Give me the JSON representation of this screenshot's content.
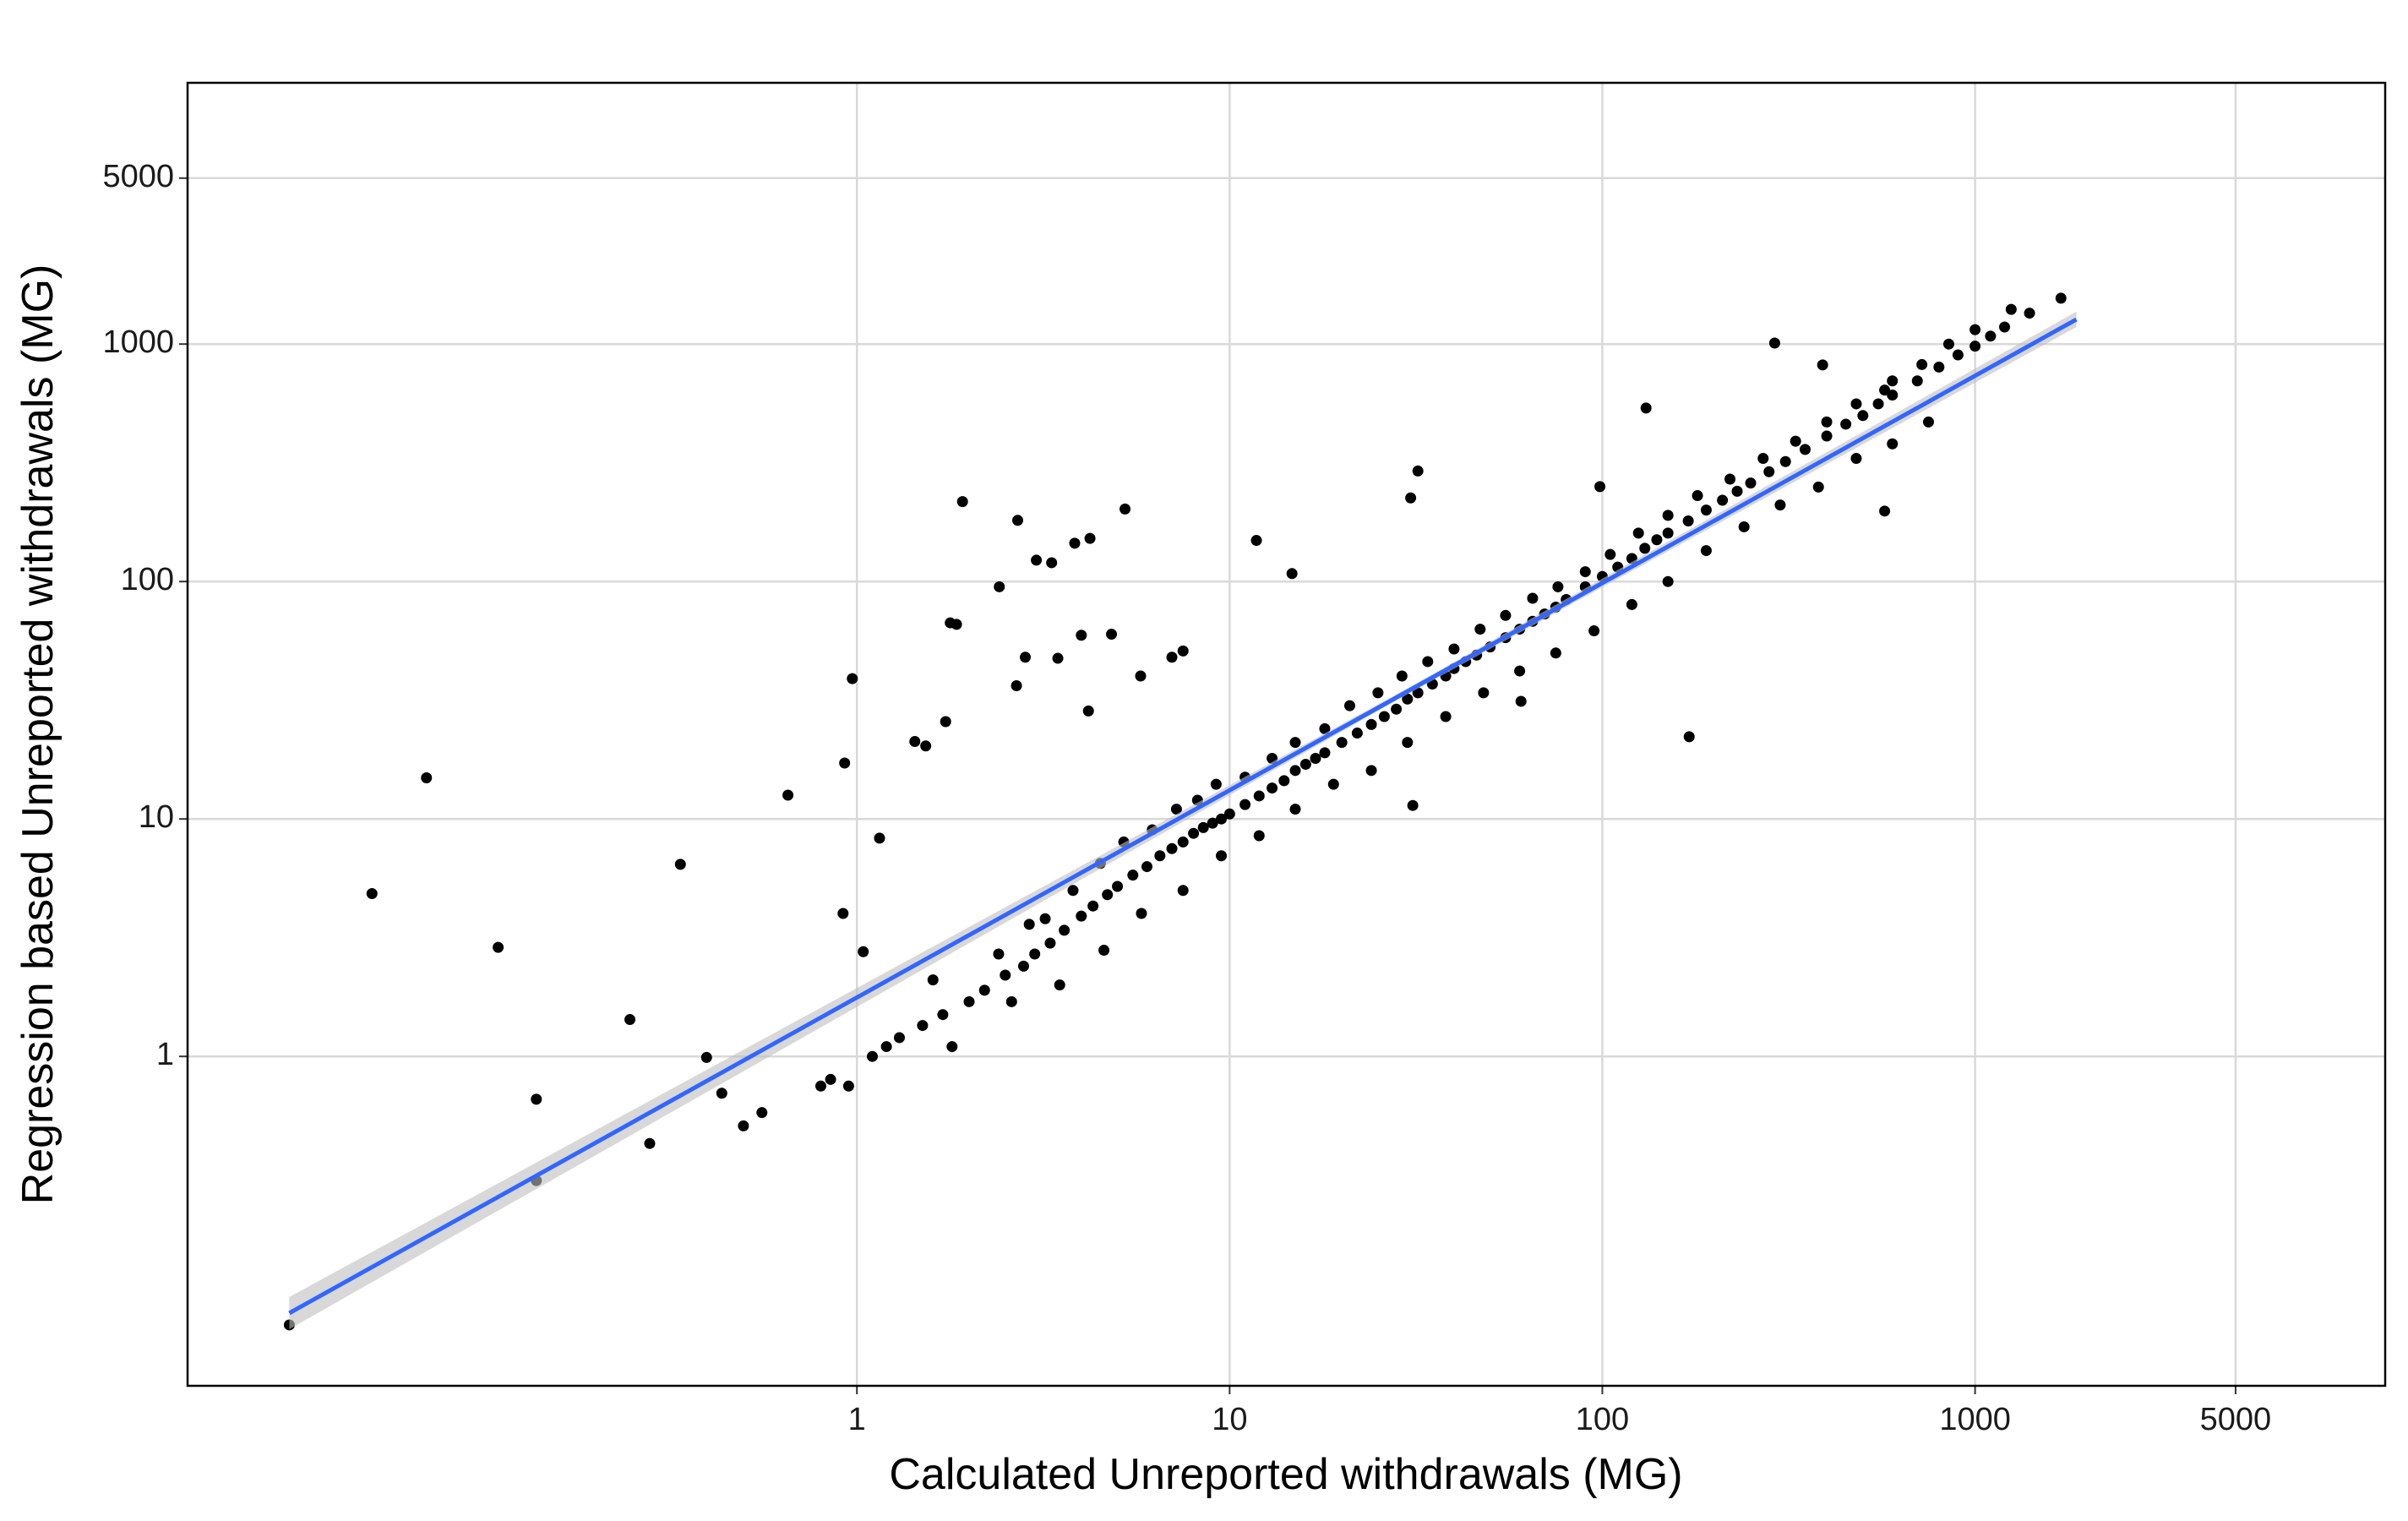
{
  "chart_data": {
    "type": "scatter",
    "x_label": "Calculated Unreported withdrawals (MG)",
    "y_label": "Regression based Unreported withdrawals (MG)",
    "x_log": true,
    "y_log": true,
    "grid": true,
    "xlim": [
      0.016,
      12600
    ],
    "ylim": [
      0.041,
      12600
    ],
    "xticks": [
      1,
      10,
      100,
      1000,
      5000
    ],
    "yticks": [
      1,
      10,
      100,
      1000,
      5000
    ],
    "color": "#000000",
    "x": [
      0.03,
      0.05,
      0.07,
      0.109,
      0.138,
      0.138,
      0.246,
      0.278,
      0.336,
      0.395,
      0.434,
      0.496,
      0.556,
      0.653,
      0.918,
      0.927,
      0.972,
      1.04,
      1.15,
      1.43,
      1.53,
      1.73,
      1.78,
      1.85,
      1.92,
      2.41,
      2.7,
      2.83,
      2.68,
      3.03,
      3.33,
      3.46,
      3.84,
      4.22,
      4.0,
      4.18,
      4.82,
      5.24,
      5.77,
      7.0,
      7.5,
      11.8,
      14.7,
      30.6,
      32,
      98.5,
      131,
      171,
      290,
      390,
      572,
      572,
      0.8,
      0.85,
      0.95,
      1.1,
      1.2,
      1.3,
      1.5,
      1.7,
      2.0,
      2.2,
      2.5,
      2.8,
      3.0,
      3.3,
      3.6,
      4.0,
      4.3,
      4.7,
      5.0,
      5.5,
      6,
      6.5,
      7,
      7.5,
      8,
      8.5,
      9,
      9.5,
      10,
      11,
      12,
      13,
      14,
      15,
      16,
      17,
      18,
      20,
      22,
      24,
      26,
      28,
      30,
      32,
      35,
      38,
      40,
      43,
      46,
      50,
      55,
      60,
      65,
      70,
      75,
      80,
      90,
      100,
      110,
      120,
      130,
      140,
      150,
      170,
      190,
      210,
      230,
      250,
      280,
      310,
      350,
      400,
      450,
      500,
      550,
      600,
      700,
      800,
      900,
      1000,
      1100,
      1200,
      1400,
      1700,
      1.6,
      2.4,
      2.9,
      3.2,
      3.8,
      4.5,
      5.2,
      6.2,
      7.2,
      8.2,
      9.2,
      11,
      13,
      15,
      18,
      21,
      25,
      29,
      34,
      40,
      47,
      55,
      65,
      76,
      90,
      105,
      125,
      150,
      180,
      220,
      270,
      330,
      400,
      480,
      600,
      720,
      850,
      1000,
      1250,
      1.8,
      2.6,
      3.5,
      4.6,
      5.8,
      7.5,
      9.5,
      12,
      15,
      19,
      24,
      30,
      38,
      48,
      60,
      75,
      95,
      120,
      150,
      190,
      240,
      300,
      380,
      480,
      600,
      750,
      31,
      60.5
    ],
    "values": [
      0.074,
      4.85,
      14.9,
      2.88,
      0.66,
      0.3,
      1.43,
      0.43,
      6.44,
      0.99,
      0.7,
      0.51,
      0.58,
      12.6,
      4.0,
      17.2,
      39,
      2.76,
      8.3,
      21.2,
      20.3,
      25.7,
      67,
      66,
      217,
      95,
      181,
      48,
      36.4,
      123,
      120,
      47.5,
      145,
      152,
      59.4,
      28.5,
      60,
      202,
      40,
      48,
      51,
      149,
      108,
      225,
      292,
      251,
      538,
      22.2,
      1010,
      817,
      198,
      640,
      0.75,
      0.8,
      0.75,
      1.0,
      1.1,
      1.2,
      1.35,
      1.5,
      1.7,
      1.9,
      2.2,
      2.4,
      2.7,
      3.0,
      3.4,
      3.9,
      4.3,
      4.8,
      5.2,
      5.8,
      6.3,
      7,
      7.5,
      8,
      8.7,
      9.2,
      9.6,
      10,
      10.5,
      11.5,
      12.5,
      13.5,
      14.5,
      16,
      17,
      18,
      19,
      21,
      23,
      25,
      27,
      29,
      32,
      34,
      37,
      40,
      43,
      46,
      49,
      53,
      58,
      63,
      68,
      73,
      78,
      84,
      95,
      105,
      115,
      125,
      138,
      150,
      160,
      180,
      200,
      220,
      240,
      260,
      290,
      320,
      360,
      410,
      460,
      500,
      560,
      610,
      700,
      800,
      900,
      980,
      1080,
      1180,
      1350,
      1560,
      2.1,
      2.7,
      3.6,
      3.8,
      5,
      6.5,
      8,
      9,
      11,
      12,
      14,
      15,
      18,
      21,
      24,
      30,
      34,
      40,
      46,
      52,
      63,
      72,
      85,
      95,
      110,
      130,
      160,
      190,
      230,
      270,
      330,
      390,
      470,
      560,
      700,
      820,
      1000,
      1150,
      1400,
      1.1,
      1.7,
      2.0,
      2.8,
      4.0,
      5.0,
      7.0,
      8.5,
      11,
      14,
      16,
      21,
      27,
      34,
      42,
      50,
      62,
      80,
      100,
      135,
      170,
      210,
      250,
      330,
      380,
      470,
      11.4,
      31.3
    ],
    "fit": {
      "x": [
        0.03,
        1870
      ],
      "values": [
        0.083,
        1270
      ],
      "color": "#3366ff"
    },
    "ci": {
      "x": [
        0.03,
        30,
        1870
      ],
      "lower": [
        0.071,
        33.5,
        1180
      ],
      "upper": [
        0.097,
        35.5,
        1370
      ],
      "color": "#bebebe"
    }
  }
}
